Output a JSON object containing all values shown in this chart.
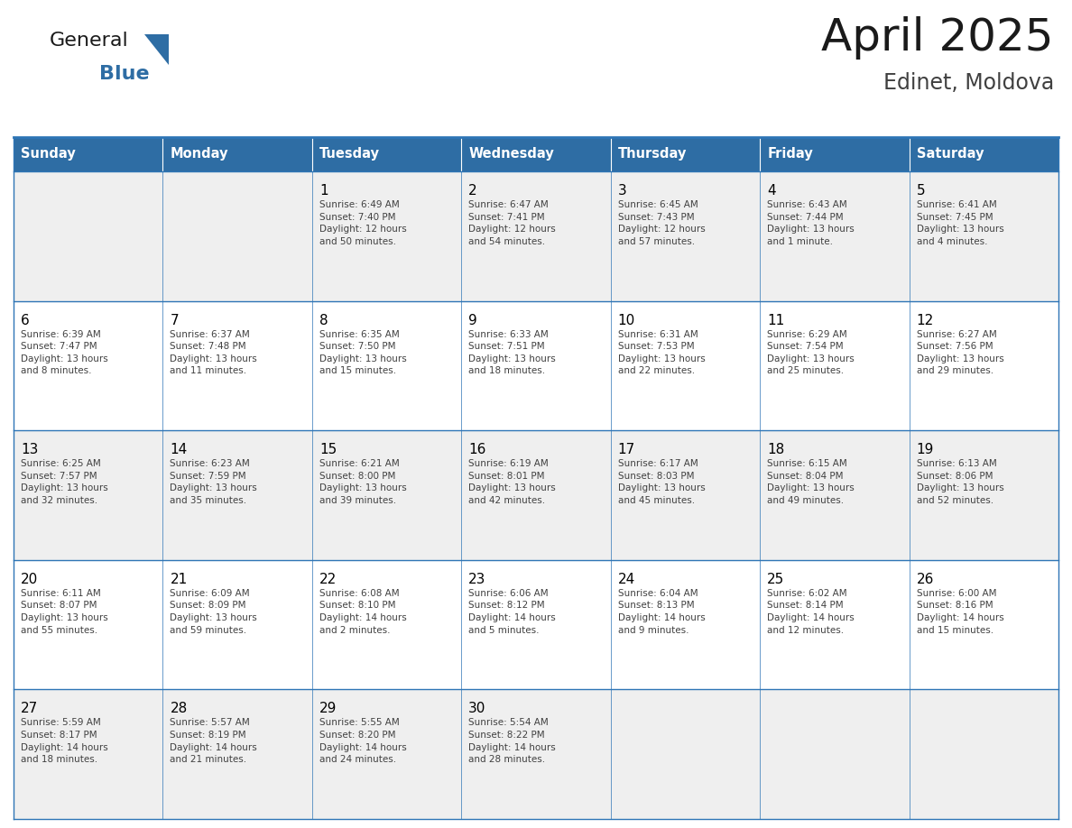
{
  "title": "April 2025",
  "subtitle": "Edinet, Moldova",
  "header_bg": "#2E6DA4",
  "header_text_color": "#FFFFFF",
  "days_of_week": [
    "Sunday",
    "Monday",
    "Tuesday",
    "Wednesday",
    "Thursday",
    "Friday",
    "Saturday"
  ],
  "cell_bg_odd": "#EFEFEF",
  "cell_bg_even": "#FFFFFF",
  "cell_border_color": "#2E75B6",
  "day_number_color": "#000000",
  "cell_text_color": "#404040",
  "title_color": "#1a1a1a",
  "subtitle_color": "#404040",
  "logo_general_color": "#1a1a1a",
  "logo_blue_color": "#2E6DA4",
  "logo_triangle_color": "#2E6DA4",
  "calendar": [
    [
      {
        "day": "",
        "text": ""
      },
      {
        "day": "",
        "text": ""
      },
      {
        "day": "1",
        "text": "Sunrise: 6:49 AM\nSunset: 7:40 PM\nDaylight: 12 hours\nand 50 minutes."
      },
      {
        "day": "2",
        "text": "Sunrise: 6:47 AM\nSunset: 7:41 PM\nDaylight: 12 hours\nand 54 minutes."
      },
      {
        "day": "3",
        "text": "Sunrise: 6:45 AM\nSunset: 7:43 PM\nDaylight: 12 hours\nand 57 minutes."
      },
      {
        "day": "4",
        "text": "Sunrise: 6:43 AM\nSunset: 7:44 PM\nDaylight: 13 hours\nand 1 minute."
      },
      {
        "day": "5",
        "text": "Sunrise: 6:41 AM\nSunset: 7:45 PM\nDaylight: 13 hours\nand 4 minutes."
      }
    ],
    [
      {
        "day": "6",
        "text": "Sunrise: 6:39 AM\nSunset: 7:47 PM\nDaylight: 13 hours\nand 8 minutes."
      },
      {
        "day": "7",
        "text": "Sunrise: 6:37 AM\nSunset: 7:48 PM\nDaylight: 13 hours\nand 11 minutes."
      },
      {
        "day": "8",
        "text": "Sunrise: 6:35 AM\nSunset: 7:50 PM\nDaylight: 13 hours\nand 15 minutes."
      },
      {
        "day": "9",
        "text": "Sunrise: 6:33 AM\nSunset: 7:51 PM\nDaylight: 13 hours\nand 18 minutes."
      },
      {
        "day": "10",
        "text": "Sunrise: 6:31 AM\nSunset: 7:53 PM\nDaylight: 13 hours\nand 22 minutes."
      },
      {
        "day": "11",
        "text": "Sunrise: 6:29 AM\nSunset: 7:54 PM\nDaylight: 13 hours\nand 25 minutes."
      },
      {
        "day": "12",
        "text": "Sunrise: 6:27 AM\nSunset: 7:56 PM\nDaylight: 13 hours\nand 29 minutes."
      }
    ],
    [
      {
        "day": "13",
        "text": "Sunrise: 6:25 AM\nSunset: 7:57 PM\nDaylight: 13 hours\nand 32 minutes."
      },
      {
        "day": "14",
        "text": "Sunrise: 6:23 AM\nSunset: 7:59 PM\nDaylight: 13 hours\nand 35 minutes."
      },
      {
        "day": "15",
        "text": "Sunrise: 6:21 AM\nSunset: 8:00 PM\nDaylight: 13 hours\nand 39 minutes."
      },
      {
        "day": "16",
        "text": "Sunrise: 6:19 AM\nSunset: 8:01 PM\nDaylight: 13 hours\nand 42 minutes."
      },
      {
        "day": "17",
        "text": "Sunrise: 6:17 AM\nSunset: 8:03 PM\nDaylight: 13 hours\nand 45 minutes."
      },
      {
        "day": "18",
        "text": "Sunrise: 6:15 AM\nSunset: 8:04 PM\nDaylight: 13 hours\nand 49 minutes."
      },
      {
        "day": "19",
        "text": "Sunrise: 6:13 AM\nSunset: 8:06 PM\nDaylight: 13 hours\nand 52 minutes."
      }
    ],
    [
      {
        "day": "20",
        "text": "Sunrise: 6:11 AM\nSunset: 8:07 PM\nDaylight: 13 hours\nand 55 minutes."
      },
      {
        "day": "21",
        "text": "Sunrise: 6:09 AM\nSunset: 8:09 PM\nDaylight: 13 hours\nand 59 minutes."
      },
      {
        "day": "22",
        "text": "Sunrise: 6:08 AM\nSunset: 8:10 PM\nDaylight: 14 hours\nand 2 minutes."
      },
      {
        "day": "23",
        "text": "Sunrise: 6:06 AM\nSunset: 8:12 PM\nDaylight: 14 hours\nand 5 minutes."
      },
      {
        "day": "24",
        "text": "Sunrise: 6:04 AM\nSunset: 8:13 PM\nDaylight: 14 hours\nand 9 minutes."
      },
      {
        "day": "25",
        "text": "Sunrise: 6:02 AM\nSunset: 8:14 PM\nDaylight: 14 hours\nand 12 minutes."
      },
      {
        "day": "26",
        "text": "Sunrise: 6:00 AM\nSunset: 8:16 PM\nDaylight: 14 hours\nand 15 minutes."
      }
    ],
    [
      {
        "day": "27",
        "text": "Sunrise: 5:59 AM\nSunset: 8:17 PM\nDaylight: 14 hours\nand 18 minutes."
      },
      {
        "day": "28",
        "text": "Sunrise: 5:57 AM\nSunset: 8:19 PM\nDaylight: 14 hours\nand 21 minutes."
      },
      {
        "day": "29",
        "text": "Sunrise: 5:55 AM\nSunset: 8:20 PM\nDaylight: 14 hours\nand 24 minutes."
      },
      {
        "day": "30",
        "text": "Sunrise: 5:54 AM\nSunset: 8:22 PM\nDaylight: 14 hours\nand 28 minutes."
      },
      {
        "day": "",
        "text": ""
      },
      {
        "day": "",
        "text": ""
      },
      {
        "day": "",
        "text": ""
      }
    ]
  ]
}
